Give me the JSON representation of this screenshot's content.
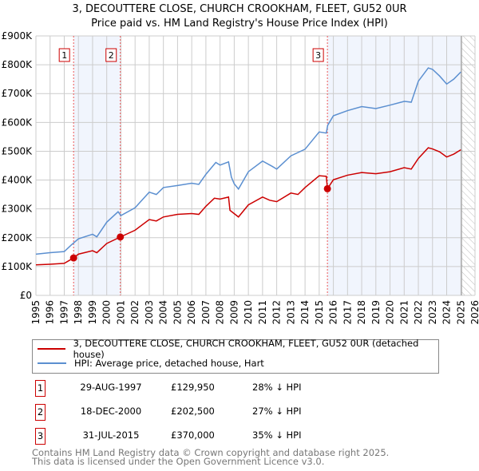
{
  "title": "3, DECOUTTERE CLOSE, CHURCH CROOKHAM, FLEET, GU52 0UR",
  "subtitle": "Price paid vs. HM Land Registry's House Price Index (HPI)",
  "chart_data": {
    "type": "line",
    "xlim": [
      1995,
      2026
    ],
    "ylim": [
      0,
      900000
    ],
    "y_ticks": [
      {
        "v": 0,
        "label": "£0"
      },
      {
        "v": 100000,
        "label": "£100K"
      },
      {
        "v": 200000,
        "label": "£200K"
      },
      {
        "v": 300000,
        "label": "£300K"
      },
      {
        "v": 400000,
        "label": "£400K"
      },
      {
        "v": 500000,
        "label": "£500K"
      },
      {
        "v": 600000,
        "label": "£600K"
      },
      {
        "v": 700000,
        "label": "£700K"
      },
      {
        "v": 800000,
        "label": "£800K"
      },
      {
        "v": 900000,
        "label": "£900K"
      }
    ],
    "x_ticks": [
      "1995",
      "1996",
      "1997",
      "1998",
      "1999",
      "2000",
      "2001",
      "2002",
      "2003",
      "2004",
      "2005",
      "2006",
      "2007",
      "2008",
      "2009",
      "2010",
      "2011",
      "2012",
      "2013",
      "2014",
      "2015",
      "2016",
      "2017",
      "2018",
      "2019",
      "2020",
      "2021",
      "2022",
      "2023",
      "2024",
      "2025",
      "2026"
    ],
    "grid": true,
    "shaded_periods": [
      [
        1997.66,
        2000.96
      ],
      [
        2015.58,
        2025.05
      ]
    ],
    "forecast_hatch_from": 2025.05,
    "series": [
      {
        "name": "3, DECOUTTERE CLOSE, CHURCH CROOKHAM, FLEET, GU52 0UR (detached house)",
        "color": "#cc0000",
        "x": [
          1995,
          1996,
          1997,
          1997.66,
          1998,
          1999,
          1999.3,
          2000,
          2000.96,
          2002,
          2003,
          2003.5,
          2004,
          2005,
          2006,
          2006.5,
          2007,
          2007.6,
          2008,
          2008.6,
          2008.7,
          2009.3,
          2010,
          2011,
          2011.5,
          2012,
          2013,
          2013.5,
          2014,
          2015,
          2015.5,
          2015.58,
          2016,
          2017,
          2018,
          2019,
          2020,
          2021,
          2021.5,
          2022,
          2022.7,
          2023,
          2023.5,
          2024,
          2024.5,
          2025
        ],
        "y": [
          106000,
          108000,
          111000,
          129950,
          143000,
          155000,
          148000,
          180000,
          202500,
          226000,
          263000,
          258000,
          272000,
          281000,
          284000,
          281000,
          309000,
          337000,
          334000,
          341000,
          295000,
          272000,
          314000,
          341000,
          330000,
          325000,
          355000,
          350000,
          374000,
          415000,
          413000,
          370000,
          401000,
          417000,
          426000,
          422000,
          429000,
          443000,
          438000,
          475000,
          512000,
          508000,
          498000,
          480000,
          490000,
          505000
        ]
      },
      {
        "name": "HPI: Average price, detached house, Hart",
        "color": "#5b8fd0",
        "x": [
          1995,
          1996,
          1997,
          1997.5,
          1998,
          1999,
          1999.3,
          2000,
          2000.8,
          2001,
          2002,
          2003,
          2003.5,
          2004,
          2005,
          2006,
          2006.5,
          2007,
          2007.7,
          2008,
          2008.6,
          2008.8,
          2009,
          2009.3,
          2010,
          2011,
          2011.7,
          2012,
          2013,
          2014,
          2015,
          2015.5,
          2015.6,
          2016,
          2017,
          2018,
          2019,
          2020,
          2021,
          2021.5,
          2022,
          2022.7,
          2023,
          2023.5,
          2024,
          2024.5,
          2025
        ],
        "y": [
          143000,
          148000,
          152000,
          175000,
          196000,
          212000,
          203000,
          254000,
          290000,
          277000,
          304000,
          358000,
          350000,
          374000,
          381000,
          389000,
          385000,
          420000,
          461000,
          452000,
          463000,
          410000,
          387000,
          369000,
          429000,
          466000,
          447000,
          438000,
          484000,
          507000,
          567000,
          563000,
          590000,
          623000,
          641000,
          655000,
          648000,
          660000,
          673000,
          670000,
          743000,
          789000,
          784000,
          761000,
          733000,
          750000,
          775000
        ]
      }
    ],
    "sales": [
      {
        "label": "1",
        "x": 1997.66,
        "y": 129950
      },
      {
        "label": "2",
        "x": 2000.96,
        "y": 202500
      },
      {
        "label": "3",
        "x": 2015.58,
        "y": 370000
      }
    ]
  },
  "legend": {
    "property": "3, DECOUTTERE CLOSE, CHURCH CROOKHAM, FLEET, GU52 0UR (detached house)",
    "hpi": "HPI: Average price, detached house, Hart"
  },
  "transactions": [
    {
      "num": "1",
      "date": "29-AUG-1997",
      "price": "£129,950",
      "hpi": "28% ↓ HPI"
    },
    {
      "num": "2",
      "date": "18-DEC-2000",
      "price": "£202,500",
      "hpi": "27% ↓ HPI"
    },
    {
      "num": "3",
      "date": "31-JUL-2015",
      "price": "£370,000",
      "hpi": "35% ↓ HPI"
    }
  ],
  "footer": [
    "Contains HM Land Registry data © Crown copyright and database right 2025.",
    "This data is licensed under the Open Government Licence v3.0."
  ]
}
